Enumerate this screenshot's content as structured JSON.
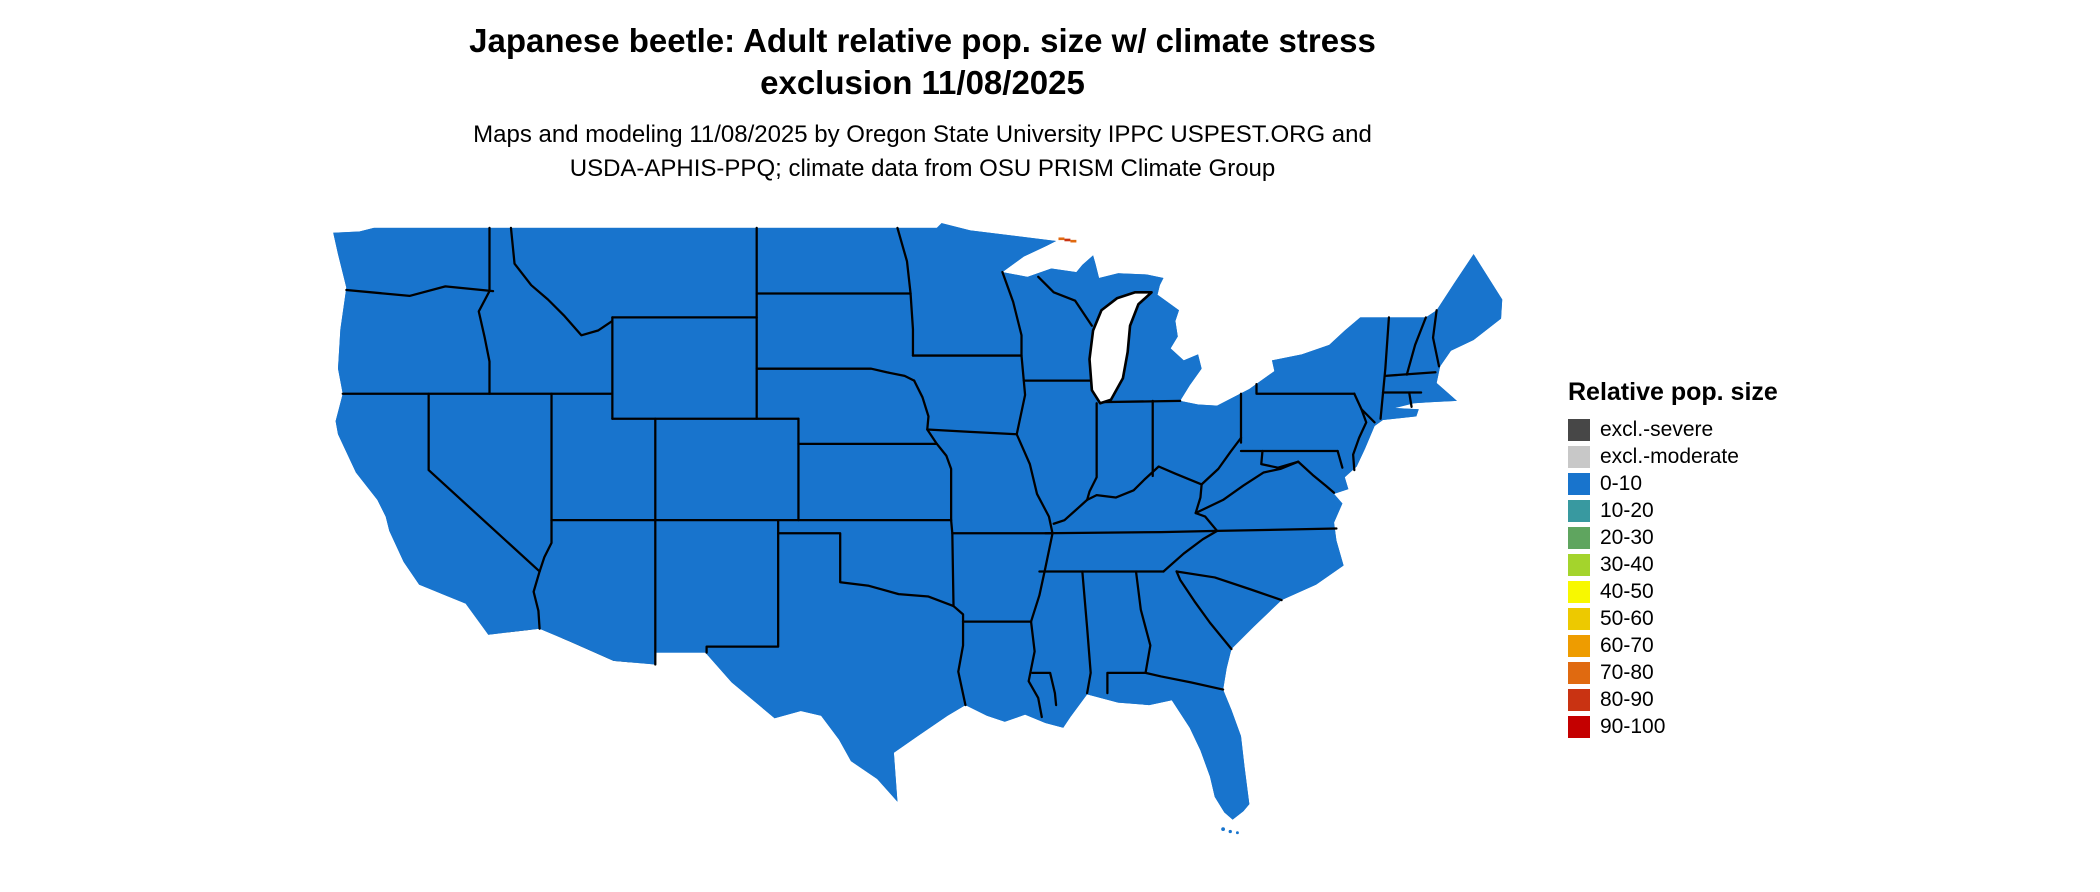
{
  "header": {
    "title_line1": "Japanese beetle: Adult relative pop. size w/ climate stress",
    "title_line2": "exclusion 11/08/2025",
    "subtitle_line1": "Maps and modeling 11/08/2025 by Oregon State University IPPC USPEST.ORG and",
    "subtitle_line2": "USDA-APHIS-PPQ; climate data from OSU PRISM Climate Group"
  },
  "map": {
    "region": "Contiguous United States",
    "land_color": "#1874CD",
    "border_color": "#000000",
    "background_color": "#ffffff"
  },
  "legend": {
    "title": "Relative pop. size",
    "items": [
      {
        "label": "excl.-severe",
        "color": "#474747"
      },
      {
        "label": "excl.-moderate",
        "color": "#c8c8c8"
      },
      {
        "label": "0-10",
        "color": "#1874CD"
      },
      {
        "label": "10-20",
        "color": "#3899a0"
      },
      {
        "label": "20-30",
        "color": "#5fa55f"
      },
      {
        "label": "30-40",
        "color": "#a4d42c"
      },
      {
        "label": "40-50",
        "color": "#f8f800"
      },
      {
        "label": "50-60",
        "color": "#edc900"
      },
      {
        "label": "60-70",
        "color": "#ee9c00"
      },
      {
        "label": "70-80",
        "color": "#e06a10"
      },
      {
        "label": "80-90",
        "color": "#c93312"
      },
      {
        "label": "90-100",
        "color": "#c40000"
      }
    ]
  }
}
